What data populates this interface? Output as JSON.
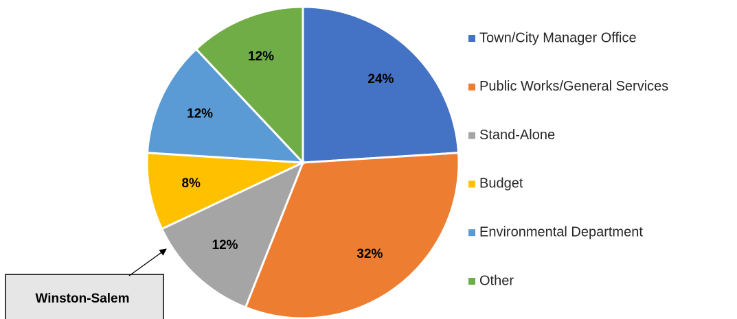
{
  "chart_data": {
    "type": "pie",
    "categories": [
      "Town/City Manager Office",
      "Public Works/General Services",
      "Stand-Alone",
      "Budget",
      "Environmental Department",
      "Other"
    ],
    "values": [
      24,
      32,
      12,
      8,
      12,
      12
    ],
    "value_labels": [
      "24%",
      "32%",
      "12%",
      "8%",
      "12%",
      "12%"
    ],
    "colors": [
      "#4472c4",
      "#ed7d31",
      "#a5a5a5",
      "#ffc000",
      "#5b9bd5",
      "#70ad47"
    ],
    "legend": "right",
    "annotation": "Winston-Salem"
  }
}
